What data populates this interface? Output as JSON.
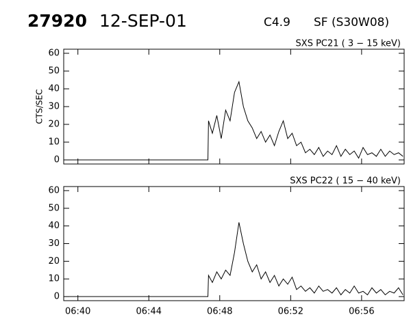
{
  "header": {
    "id": "27920",
    "date": "12-SEP-01",
    "class": "C4.9",
    "location": "SF (S30W08)"
  },
  "chart_data": [
    {
      "type": "line",
      "title": "SXS PC21  (  3 − 15 keV)",
      "y_label": "CTS/SEC",
      "color": "#000000",
      "x": [
        "06:39:12",
        "06:47:20",
        "06:47:22",
        "06:47:35",
        "06:47:50",
        "06:48:05",
        "06:48:20",
        "06:48:35",
        "06:48:50",
        "06:49:05",
        "06:49:20",
        "06:49:35",
        "06:49:50",
        "06:50:05",
        "06:50:20",
        "06:50:35",
        "06:50:50",
        "06:51:05",
        "06:51:20",
        "06:51:35",
        "06:51:50",
        "06:52:05",
        "06:52:20",
        "06:52:35",
        "06:52:50",
        "06:53:05",
        "06:53:20",
        "06:53:35",
        "06:53:50",
        "06:54:05",
        "06:54:20",
        "06:54:35",
        "06:54:50",
        "06:55:05",
        "06:55:20",
        "06:55:35",
        "06:55:50",
        "06:56:05",
        "06:56:20",
        "06:56:35",
        "06:56:50",
        "06:57:05",
        "06:57:20",
        "06:57:35",
        "06:57:50",
        "06:58:05",
        "06:58:20"
      ],
      "values": [
        0,
        0,
        22,
        15,
        25,
        12,
        28,
        22,
        38,
        44,
        30,
        22,
        18,
        12,
        16,
        10,
        14,
        8,
        16,
        22,
        12,
        15,
        8,
        10,
        4,
        6,
        3,
        7,
        2,
        5,
        3,
        8,
        2,
        6,
        3,
        5,
        1,
        7,
        3,
        4,
        2,
        6,
        2,
        5,
        3,
        4,
        2
      ],
      "xlim": [
        "06:39:12",
        "06:58:24"
      ],
      "ylim": [
        -2.3,
        62.3
      ],
      "xticks": [
        "06:40",
        "06:44",
        "06:48",
        "06:52",
        "06:56"
      ],
      "yticks": [
        0,
        10,
        20,
        30,
        40,
        50,
        60
      ]
    },
    {
      "type": "line",
      "title": "SXS PC22  ( 15 − 40 keV)",
      "color": "#000000",
      "x": [
        "06:39:12",
        "06:47:20",
        "06:47:22",
        "06:47:35",
        "06:47:50",
        "06:48:05",
        "06:48:20",
        "06:48:35",
        "06:48:50",
        "06:49:05",
        "06:49:20",
        "06:49:35",
        "06:49:50",
        "06:50:05",
        "06:50:20",
        "06:50:35",
        "06:50:50",
        "06:51:05",
        "06:51:20",
        "06:51:35",
        "06:51:50",
        "06:52:05",
        "06:52:20",
        "06:52:35",
        "06:52:50",
        "06:53:05",
        "06:53:20",
        "06:53:35",
        "06:53:50",
        "06:54:05",
        "06:54:20",
        "06:54:35",
        "06:54:50",
        "06:55:05",
        "06:55:20",
        "06:55:35",
        "06:55:50",
        "06:56:05",
        "06:56:20",
        "06:56:35",
        "06:56:50",
        "06:57:05",
        "06:57:20",
        "06:57:35",
        "06:57:50",
        "06:58:05",
        "06:58:20"
      ],
      "values": [
        0,
        0,
        12,
        8,
        14,
        10,
        15,
        12,
        25,
        42,
        30,
        20,
        14,
        18,
        10,
        14,
        8,
        12,
        6,
        10,
        7,
        11,
        4,
        6,
        3,
        5,
        2,
        6,
        3,
        4,
        2,
        5,
        1,
        4,
        2,
        6,
        2,
        3,
        1,
        5,
        2,
        4,
        1,
        3,
        2,
        5,
        1
      ],
      "xlim": [
        "06:39:12",
        "06:58:24"
      ],
      "ylim": [
        -2.3,
        62.3
      ],
      "xticks": [
        "06:40",
        "06:44",
        "06:48",
        "06:52",
        "06:56"
      ],
      "x_tick_labels": true,
      "yticks": [
        0,
        10,
        20,
        30,
        40,
        50,
        60
      ]
    }
  ]
}
